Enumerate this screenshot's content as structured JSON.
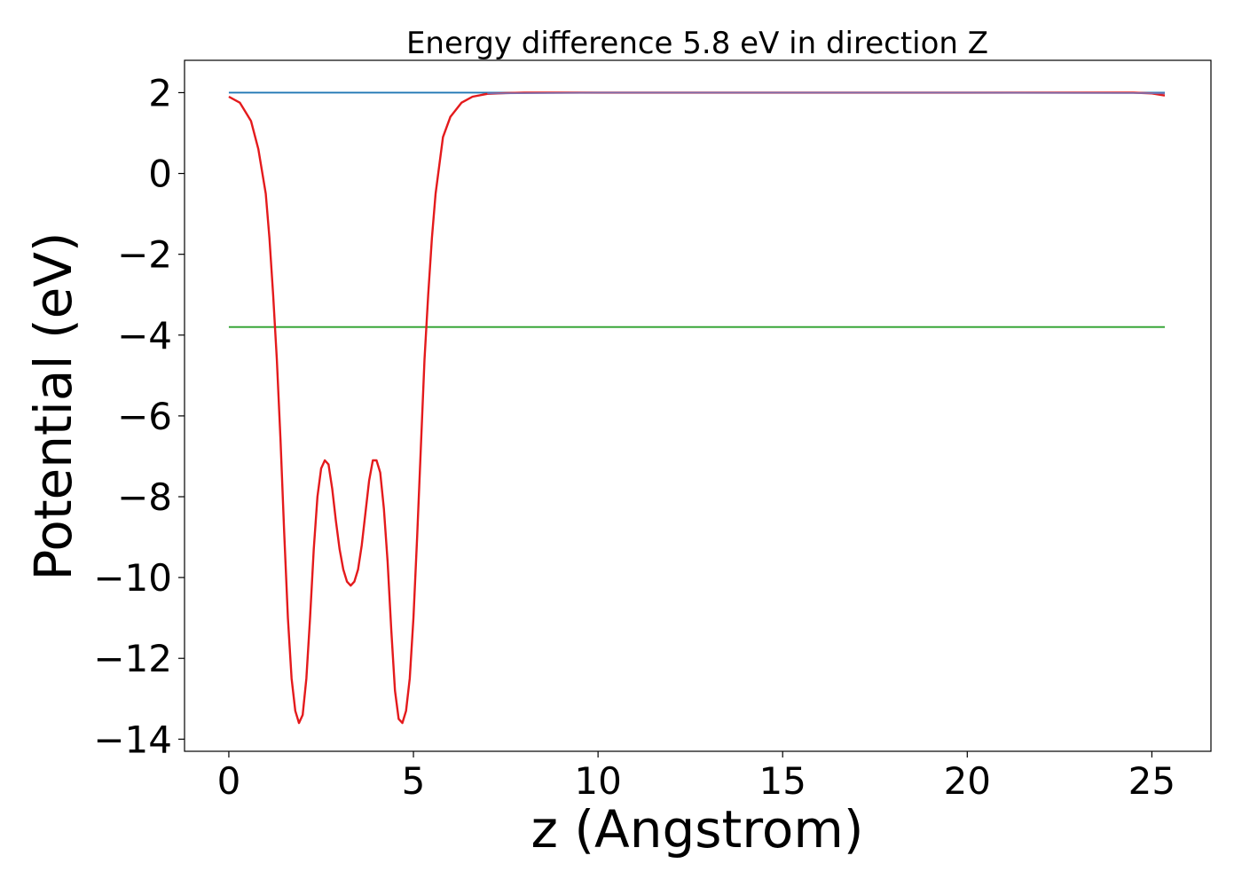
{
  "chart_data": {
    "type": "line",
    "title": "Energy difference 5.8 eV in direction Z",
    "xlabel": "z (Angstrom)",
    "ylabel": "Potential (eV)",
    "xlim": [
      -1.2,
      26.6
    ],
    "ylim": [
      -14.3,
      2.8
    ],
    "xticks": [
      0,
      5,
      10,
      15,
      20,
      25
    ],
    "yticks": [
      2,
      0,
      -2,
      -4,
      -6,
      -8,
      -10,
      -12,
      -14
    ],
    "xtick_labels": [
      "0",
      "5",
      "10",
      "15",
      "20",
      "25"
    ],
    "ytick_labels": [
      "2",
      "0",
      "−2",
      "−4",
      "−6",
      "−8",
      "−10",
      "−12",
      "−14"
    ],
    "grid": false,
    "series": [
      {
        "color": "#1f77b4",
        "x": [
          0,
          25.35
        ],
        "y": [
          2.0,
          2.0
        ]
      },
      {
        "color": "#2ca02c",
        "x": [
          0,
          25.35
        ],
        "y": [
          -3.8,
          -3.8
        ]
      },
      {
        "color": "#e41a1c",
        "x": [
          0,
          0.3,
          0.6,
          0.8,
          1.0,
          1.1,
          1.2,
          1.3,
          1.4,
          1.5,
          1.6,
          1.7,
          1.8,
          1.9,
          2.0,
          2.1,
          2.2,
          2.3,
          2.4,
          2.5,
          2.6,
          2.7,
          2.8,
          2.9,
          3.0,
          3.1,
          3.2,
          3.3,
          3.4,
          3.5,
          3.6,
          3.7,
          3.8,
          3.9,
          4.0,
          4.1,
          4.2,
          4.3,
          4.4,
          4.5,
          4.6,
          4.7,
          4.8,
          4.9,
          5.0,
          5.1,
          5.2,
          5.3,
          5.4,
          5.5,
          5.6,
          5.8,
          6.0,
          6.3,
          6.6,
          7.0,
          7.5,
          8.0,
          10.0,
          15.0,
          20.0,
          24.5,
          25.0,
          25.35
        ],
        "y": [
          1.9,
          1.75,
          1.3,
          0.6,
          -0.5,
          -1.6,
          -3.0,
          -4.6,
          -6.6,
          -8.9,
          -11.0,
          -12.5,
          -13.3,
          -13.6,
          -13.4,
          -12.5,
          -11.0,
          -9.3,
          -8.0,
          -7.3,
          -7.1,
          -7.2,
          -7.8,
          -8.6,
          -9.3,
          -9.8,
          -10.1,
          -10.2,
          -10.1,
          -9.8,
          -9.2,
          -8.4,
          -7.6,
          -7.1,
          -7.1,
          -7.4,
          -8.3,
          -9.6,
          -11.3,
          -12.8,
          -13.5,
          -13.6,
          -13.3,
          -12.5,
          -11.0,
          -9.0,
          -6.8,
          -4.6,
          -3.0,
          -1.6,
          -0.5,
          0.9,
          1.4,
          1.75,
          1.9,
          1.97,
          1.99,
          2.0,
          2.0,
          2.0,
          2.0,
          2.0,
          1.98,
          1.93
        ]
      },
      {
        "color": "#7e6fae",
        "x": [
          7.0,
          10.0,
          15.0,
          20.0,
          24.5,
          25.35
        ],
        "y": [
          1.98,
          2.0,
          2.0,
          2.0,
          1.99,
          1.98
        ]
      }
    ]
  }
}
